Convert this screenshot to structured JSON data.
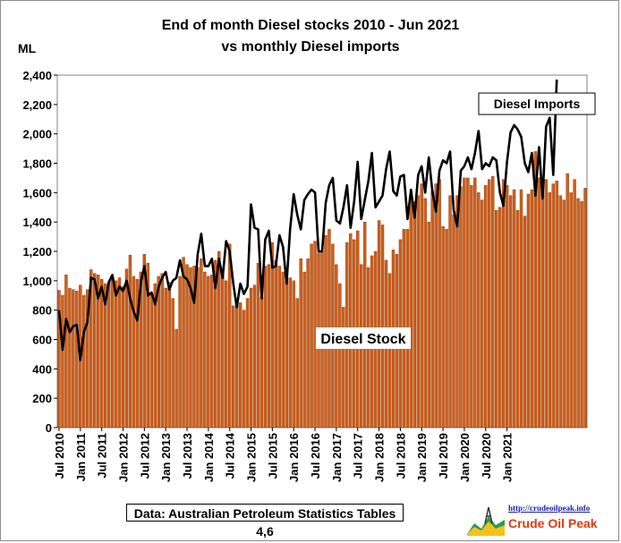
{
  "title_line1": "End of month Diesel stocks 2010 - Jun 2021",
  "title_line2": "vs monthly Diesel imports",
  "y_unit": "ML",
  "source": "Data: Australian Petroleum Statistics Tables 4,6",
  "logo": {
    "url": "http://crudeoilpeak.info",
    "name": "Crude Oil Peak"
  },
  "colors": {
    "bar": "#d35f1a",
    "bar_edge": "#7a3200",
    "line": "#000000",
    "plot_bg": "#ffffff"
  },
  "chart_data": {
    "type": "bar",
    "xlabel": "",
    "ylabel": "ML",
    "ylim": [
      0,
      2400
    ],
    "yticks": [
      "0",
      "200",
      "400",
      "600",
      "800",
      "1,000",
      "1,200",
      "1,400",
      "1,600",
      "1,800",
      "2,000",
      "2,200",
      "2,400"
    ],
    "x_tick_labels": [
      "Jul 2010",
      "Jan 2011",
      "Jul 2011",
      "Jan 2012",
      "Jul 2012",
      "Jan 2013",
      "Jul 2013",
      "Jan 2014",
      "Jul 2014",
      "Jan 2015",
      "Jul 2015",
      "Jan 2016",
      "Jul 2016",
      "Jan 2017",
      "Jul 2017",
      "Jan 2018",
      "Jul 2018",
      "Jan 2019",
      "Jul 2019",
      "Jan 2020",
      "Jul 2020",
      "Jan 2021"
    ],
    "grid": false,
    "annotations": [
      "Diesel Imports",
      "Diesel Stock"
    ],
    "series": [
      {
        "type": "bar",
        "values": [
          935,
          900,
          1040,
          950,
          940,
          930,
          970,
          900,
          940,
          1075,
          1050,
          1040,
          1010,
          980,
          990,
          1010,
          1000,
          1020,
          960,
          1080,
          1175,
          1030,
          1010,
          1060,
          1180,
          1120,
          920,
          980,
          1030,
          1050,
          950,
          990,
          880,
          670,
          1030,
          1160,
          1110,
          1090,
          1100,
          1090,
          1150,
          1060,
          1030,
          1040,
          1140,
          1200,
          1080,
          1000,
          1250,
          830,
          840,
          850,
          800,
          880,
          950,
          970,
          1120,
          890,
          1100,
          1110,
          1260,
          1140,
          1100,
          1060,
          1040,
          1020,
          1000,
          880,
          1150,
          1060,
          1150,
          1250,
          1270,
          1190,
          1200,
          1310,
          1350,
          1250,
          1110,
          980,
          820,
          1260,
          1320,
          1280,
          1340,
          1110,
          1400,
          1090,
          1170,
          1200,
          1410,
          1380,
          1140,
          1050,
          1210,
          1180,
          1280,
          1350,
          1350,
          1590,
          1540,
          1580,
          1660,
          1560,
          1400,
          1610,
          1660,
          1690,
          1370,
          1350,
          1580,
          1450,
          1580,
          1640,
          1700,
          1700,
          1650,
          1700,
          1600,
          1550,
          1650,
          1690,
          1710,
          1480,
          1500,
          1690,
          1650,
          1580,
          1620,
          1480,
          1620,
          1440,
          1590,
          1620,
          1880,
          1700,
          1650,
          1690,
          1600,
          1660,
          1680,
          1580,
          1550,
          1730,
          1600,
          1690,
          1560,
          1540,
          1630
        ]
      },
      {
        "type": "line",
        "values": [
          800,
          530,
          740,
          650,
          690,
          700,
          460,
          650,
          720,
          1020,
          1010,
          880,
          960,
          840,
          990,
          1040,
          900,
          960,
          930,
          1000,
          880,
          790,
          730,
          990,
          1100,
          900,
          920,
          840,
          960,
          1020,
          1060,
          940,
          1000,
          1020,
          1140,
          1030,
          1010,
          950,
          850,
          1180,
          1320,
          1100,
          1100,
          1150,
          950,
          1150,
          1020,
          1270,
          1200,
          980,
          820,
          980,
          910,
          960,
          1520,
          1360,
          1350,
          880,
          1280,
          1340,
          1090,
          1100,
          1310,
          1230,
          980,
          1350,
          1590,
          1450,
          1350,
          1550,
          1590,
          1620,
          1600,
          1200,
          1200,
          1530,
          1650,
          1700,
          1410,
          1390,
          1500,
          1650,
          1360,
          1540,
          1810,
          1420,
          1550,
          1680,
          1870,
          1500,
          1540,
          1580,
          1760,
          1880,
          1610,
          1580,
          1710,
          1720,
          1420,
          1620,
          1430,
          1720,
          1780,
          1600,
          1840,
          1610,
          1470,
          1750,
          1820,
          1800,
          1880,
          1480,
          1370,
          1750,
          1780,
          1840,
          1760,
          1870,
          2020,
          1760,
          1800,
          1780,
          1840,
          1820,
          1600,
          1510,
          1810,
          2010,
          2060,
          2030,
          1980,
          1800,
          1740,
          1870,
          1580,
          1910,
          1560,
          2050,
          2110,
          1720,
          2370
        ]
      }
    ]
  }
}
